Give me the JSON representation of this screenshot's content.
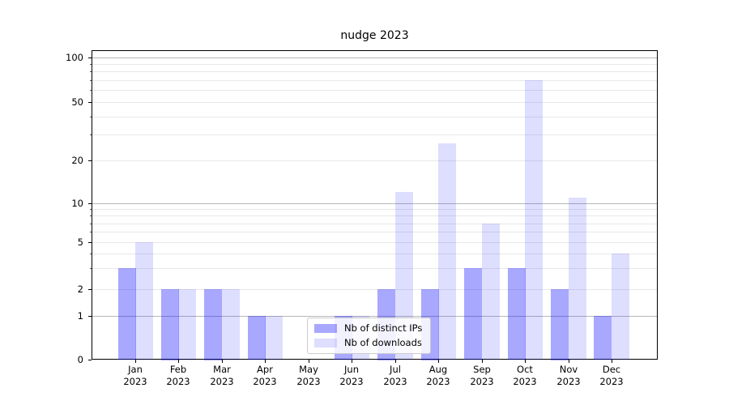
{
  "chart_data": {
    "type": "bar",
    "title": "nudge 2023",
    "categories": [
      "Jan 2023",
      "Feb 2023",
      "Mar 2023",
      "Apr 2023",
      "May 2023",
      "Jun 2023",
      "Jul 2023",
      "Aug 2023",
      "Sep 2023",
      "Oct 2023",
      "Nov 2023",
      "Dec 2023"
    ],
    "x_tick_line1": [
      "Jan",
      "Feb",
      "Mar",
      "Apr",
      "May",
      "Jun",
      "Jul",
      "Aug",
      "Sep",
      "Oct",
      "Nov",
      "Dec"
    ],
    "x_tick_line2": [
      "2023",
      "2023",
      "2023",
      "2023",
      "2023",
      "2023",
      "2023",
      "2023",
      "2023",
      "2023",
      "2023",
      "2023"
    ],
    "series": [
      {
        "name": "Nb of distinct IPs",
        "color": "rgba(0,0,255,0.34)",
        "values": [
          3,
          2,
          2,
          1,
          0,
          1,
          2,
          2,
          3,
          3,
          2,
          1
        ]
      },
      {
        "name": "Nb of downloads",
        "color": "rgba(0,0,255,0.13)",
        "values": [
          5,
          2,
          2,
          1,
          0,
          1,
          12,
          26,
          7,
          70,
          11,
          4
        ]
      }
    ],
    "yscale": "symlog",
    "yticks": [
      0,
      1,
      2,
      5,
      10,
      20,
      50,
      100
    ],
    "ylim": [
      0,
      130
    ],
    "grid": {
      "major": [
        1,
        10,
        100
      ],
      "minor": [
        2,
        3,
        4,
        5,
        6,
        7,
        8,
        9,
        20,
        30,
        40,
        50,
        60,
        70,
        80,
        90
      ]
    },
    "legend": {
      "entries": [
        "Nb of distinct IPs",
        "Nb of downloads"
      ],
      "position": "lower center"
    }
  }
}
